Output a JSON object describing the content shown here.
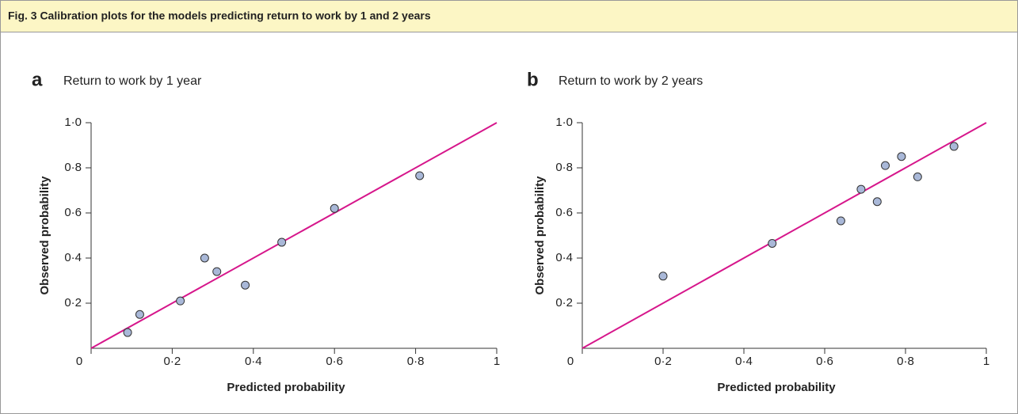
{
  "header": {
    "title": "Fig. 3 Calibration plots for the models predicting return to work by 1 and 2 years"
  },
  "chart_data": [
    {
      "type": "scatter",
      "panel_label": "a",
      "title": "Return to work by 1 year",
      "x_label": "Predicted probability",
      "y_label": "Observed probability",
      "x": [
        0.09,
        0.12,
        0.22,
        0.28,
        0.31,
        0.38,
        0.47,
        0.6,
        0.81
      ],
      "values": [
        0.07,
        0.15,
        0.21,
        0.4,
        0.34,
        0.28,
        0.47,
        0.62,
        0.765
      ],
      "color": "#a9b8d8",
      "diagonal_color": "#d6168b",
      "xlim": [
        0,
        1
      ],
      "ylim": [
        0,
        1
      ],
      "xticks": [
        0,
        {
          "value": 0.2,
          "label": "0·2"
        },
        {
          "value": 0.4,
          "label": "0·4"
        },
        {
          "value": 0.6,
          "label": "0·6"
        },
        {
          "value": 0.8,
          "label": "0·8"
        },
        1
      ],
      "yticks": [
        {
          "value": 0.2,
          "label": "0·2"
        },
        {
          "value": 0.4,
          "label": "0·4"
        },
        {
          "value": 0.6,
          "label": "0·6"
        },
        {
          "value": 0.8,
          "label": "0·8"
        },
        {
          "value": 1.0,
          "label": "1·0"
        }
      ]
    },
    {
      "type": "scatter",
      "panel_label": "b",
      "title": "Return to work by 2 years",
      "x_label": "Predicted probability",
      "y_label": "Observed probability",
      "x": [
        0.2,
        0.47,
        0.64,
        0.69,
        0.73,
        0.75,
        0.79,
        0.83,
        0.92
      ],
      "values": [
        0.32,
        0.465,
        0.565,
        0.705,
        0.65,
        0.81,
        0.85,
        0.76,
        0.895
      ],
      "color": "#a9b8d8",
      "diagonal_color": "#d6168b",
      "xlim": [
        0,
        1
      ],
      "ylim": [
        0,
        1
      ],
      "xticks": [
        0,
        {
          "value": 0.2,
          "label": "0·2"
        },
        {
          "value": 0.4,
          "label": "0·4"
        },
        {
          "value": 0.6,
          "label": "0·6"
        },
        {
          "value": 0.8,
          "label": "0·8"
        },
        1
      ],
      "yticks": [
        {
          "value": 0.2,
          "label": "0·2"
        },
        {
          "value": 0.4,
          "label": "0·4"
        },
        {
          "value": 0.6,
          "label": "0·6"
        },
        {
          "value": 0.8,
          "label": "0·8"
        },
        {
          "value": 1.0,
          "label": "1·0"
        }
      ]
    }
  ]
}
